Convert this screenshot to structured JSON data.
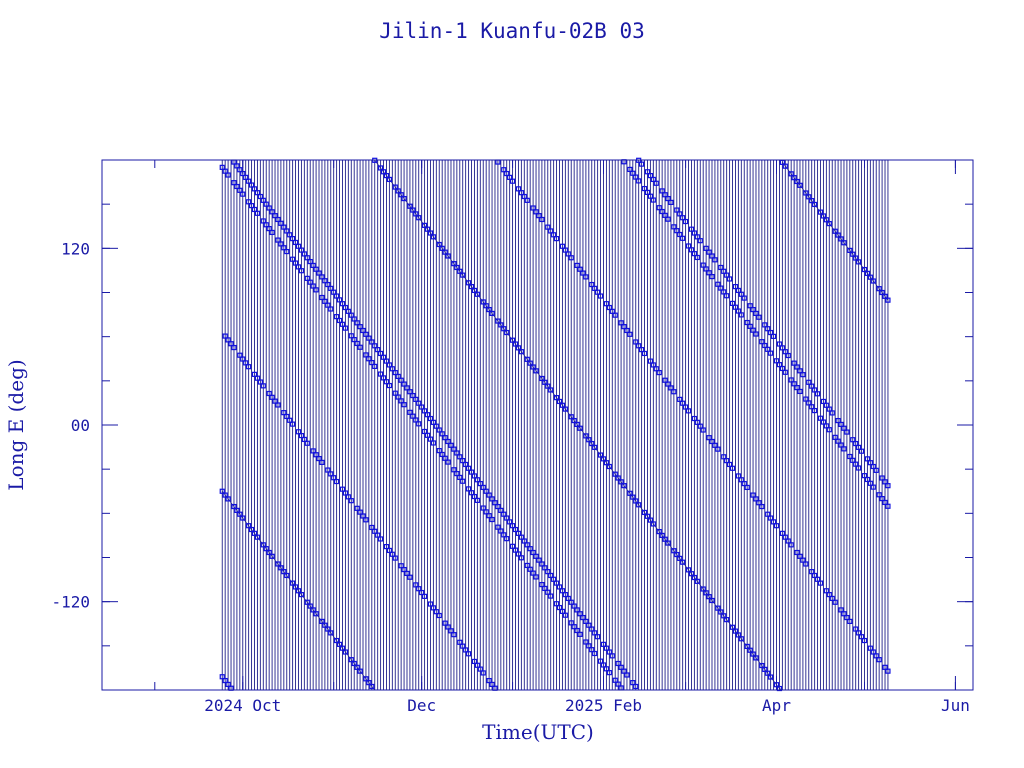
{
  "chart_data": {
    "type": "scatter",
    "title": "Jilin-1 Kuanfu-02B 03",
    "xlabel": "Time(UTC)",
    "ylabel": "Long E (deg)",
    "xlim": [
      "2024-08-14",
      "2025-06-07"
    ],
    "ylim": [
      -180,
      180
    ],
    "x_ticks": [
      {
        "date": "2024-10-01",
        "label": "2024 Oct"
      },
      {
        "date": "2024-12-01",
        "label": "Dec"
      },
      {
        "date": "2025-02-01",
        "label": "2025 Feb"
      },
      {
        "date": "2025-04-01",
        "label": "Apr"
      },
      {
        "date": "2025-06-01",
        "label": "Jun"
      }
    ],
    "y_ticks": [
      {
        "value": 120,
        "label": "120"
      },
      {
        "value": 0,
        "label": "00"
      },
      {
        "value": -120,
        "label": "-120"
      }
    ],
    "data_range": [
      "2024-09-24",
      "2025-05-09"
    ],
    "colors": {
      "axis": "#1a1aa6",
      "series": "#1010e0",
      "line": "#20208a"
    }
  }
}
